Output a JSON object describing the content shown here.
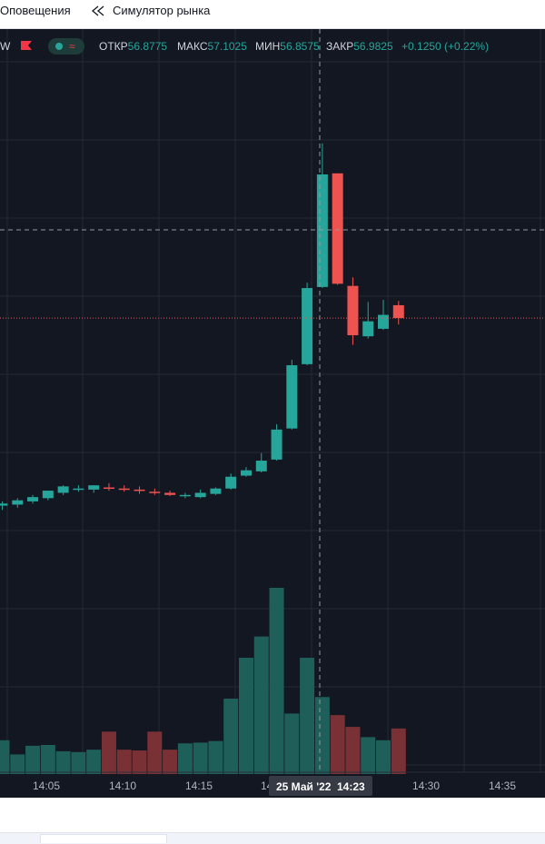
{
  "toolbar": {
    "alerts_label": "Оповещения",
    "replay_label": "Симулятор рынка",
    "replay_icon": "rewind-icon"
  },
  "legend": {
    "interval_suffix": "W",
    "flag_icon": "flag-icon",
    "open_label": "ОТКР",
    "open_value": "56.8775",
    "high_label": "МАКС",
    "high_value": "57.1025",
    "low_label": "МИН",
    "low_value": "56.8575",
    "close_label": "ЗАКР",
    "close_value": "56.9825",
    "change": "+0.1250 (+0.22%)"
  },
  "colors": {
    "up": "#26a69a",
    "down": "#ef5350",
    "background": "#131722",
    "grid": "#242832",
    "up_volume": "#1f5f5a",
    "down_volume": "#7a3135"
  },
  "time_axis": {
    "ticks": [
      "14:05",
      "14:10",
      "14:15",
      "14:30",
      "14:35"
    ],
    "crosshair_date": "25 Май '22",
    "crosshair_time": "14:23",
    "partial_tick": "14"
  },
  "chart_data": {
    "type": "candlestick",
    "x": [
      "14:00",
      "14:01",
      "14:02",
      "14:03",
      "14:04",
      "14:05",
      "14:06",
      "14:07",
      "14:08",
      "14:09",
      "14:10",
      "14:11",
      "14:12",
      "14:13",
      "14:14",
      "14:15",
      "14:16",
      "14:17",
      "14:18",
      "14:19",
      "14:20",
      "14:21",
      "14:22",
      "14:23",
      "14:24",
      "14:25",
      "14:26"
    ],
    "open": [
      56.73,
      56.731,
      56.734,
      56.737,
      56.742,
      56.745,
      56.745,
      56.747,
      56.746,
      56.745,
      56.743,
      56.742,
      56.739,
      56.738,
      56.741,
      56.746,
      56.758,
      56.762,
      56.773,
      56.802,
      56.862,
      56.934,
      57.04,
      56.935,
      56.888,
      56.895,
      56.917
    ],
    "high": [
      56.734,
      56.737,
      56.74,
      56.744,
      56.749,
      56.749,
      56.749,
      56.751,
      56.749,
      56.748,
      56.746,
      56.744,
      56.742,
      56.745,
      56.747,
      56.76,
      56.766,
      56.779,
      56.806,
      56.866,
      56.938,
      57.068,
      57.04,
      56.943,
      56.92,
      56.922,
      56.921
    ],
    "low": [
      56.726,
      56.728,
      56.732,
      56.735,
      56.74,
      56.743,
      56.742,
      56.744,
      56.743,
      56.741,
      56.74,
      56.739,
      56.737,
      56.737,
      56.74,
      56.745,
      56.757,
      56.761,
      56.772,
      56.801,
      56.861,
      56.933,
      56.936,
      56.88,
      56.886,
      56.894,
      56.899
    ],
    "close": [
      56.732,
      56.735,
      56.738,
      56.744,
      56.748,
      56.746,
      56.749,
      56.746,
      56.745,
      56.744,
      56.742,
      56.74,
      56.74,
      56.742,
      56.746,
      56.757,
      56.763,
      56.772,
      56.801,
      56.861,
      56.933,
      57.039,
      56.937,
      56.889,
      56.902,
      56.908,
      56.905
    ],
    "volume": [
      43,
      25,
      36,
      37,
      29,
      28,
      31,
      54,
      31,
      30,
      54,
      31,
      39,
      40,
      42,
      96,
      148,
      175,
      237,
      77,
      148,
      98,
      75,
      60,
      47,
      43,
      58
    ]
  }
}
